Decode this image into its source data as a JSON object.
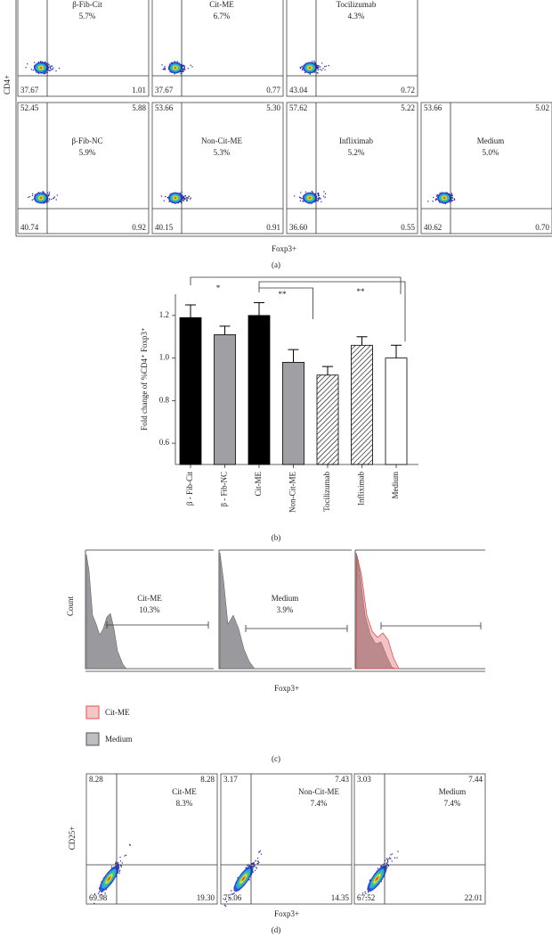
{
  "panel_a": {
    "y_label": "CD4+",
    "x_label": "Foxp3+",
    "caption": "(a)",
    "top_row": [
      {
        "label": "β-Fib-Cit",
        "percent": "5.7%",
        "lower_left": "37.67",
        "lower_right": "1.01"
      },
      {
        "label": "Cit-ME",
        "percent": "6.7%",
        "lower_left": "37.67",
        "lower_right": "0.77"
      },
      {
        "label": "Tocilizumab",
        "percent": "4.3%",
        "lower_left": "43.04",
        "lower_right": "0.72"
      }
    ],
    "bottom_row": [
      {
        "label": "β-Fib-NC",
        "percent": "5.9%",
        "upper_left": "52.45",
        "upper_right": "5.88",
        "lower_left": "40.74",
        "lower_right": "0.92"
      },
      {
        "label": "Non-Cit-ME",
        "percent": "5.3%",
        "upper_left": "53.66",
        "upper_right": "5.30",
        "lower_left": "40.15",
        "lower_right": "0.91"
      },
      {
        "label": "Infliximab",
        "percent": "5.2%",
        "upper_left": "57.62",
        "upper_right": "5.22",
        "lower_left": "36.60",
        "lower_right": "0.55"
      },
      {
        "label": "Medium",
        "percent": "5.0%",
        "upper_left": "53.66",
        "upper_right": "5.02",
        "lower_left": "40.62",
        "lower_right": "0.70"
      }
    ]
  },
  "chart_data": {
    "type": "bar",
    "y_label": "Fold change of %CD4⁺ Foxp3⁺",
    "caption": "(b)",
    "categories": [
      "β - Fib-Cit",
      "β - Fib-NC",
      "Cit-ME",
      "Non-Cit-ME",
      "Tocilizumab",
      "Infliximab",
      "Medium"
    ],
    "values": [
      1.19,
      1.11,
      1.2,
      0.98,
      0.92,
      1.06,
      1.0
    ],
    "errors": [
      0.06,
      0.04,
      0.06,
      0.06,
      0.04,
      0.04,
      0.06
    ],
    "colors": [
      "#000000",
      "#a0a0a4",
      "#000000",
      "#a0a0a4",
      "#ffffff",
      "#ffffff",
      "#ffffff"
    ],
    "hatch": [
      false,
      false,
      false,
      false,
      true,
      true,
      false
    ],
    "ylim": [
      0.5,
      1.3
    ],
    "yticks": [
      0.6,
      0.8,
      {
        "value": 1,
        "label": "1.0"
      },
      1.2
    ],
    "annotations": [
      "*",
      "**",
      "**"
    ]
  },
  "panel_c": {
    "y_label": "Count",
    "x_label": "Foxp3+",
    "caption": "(c)",
    "plots": [
      {
        "label": "Cit-ME",
        "percent": "10.3%"
      },
      {
        "label": "Medium",
        "percent": "3.9%"
      }
    ],
    "legend": [
      "Cit-ME",
      "Medium"
    ]
  },
  "panel_d": {
    "y_label": "CD25+",
    "x_label": "Foxp3+",
    "caption": "(d)",
    "plots": [
      {
        "label": "Cit-ME",
        "percent": "8.3%",
        "upper_left": "8.28",
        "upper_right": "8.28",
        "lower_left": "69.98",
        "lower_right": "19.30"
      },
      {
        "label": "Non-Cit-ME",
        "percent": "7.4%",
        "upper_left": "3.17",
        "upper_right": "7.43",
        "lower_left": "75.06",
        "lower_right": "14.35"
      },
      {
        "label": "Medium",
        "percent": "7.4%",
        "upper_left": "3.03",
        "upper_right": "7.44",
        "lower_left": "67.52",
        "lower_right": "22.01"
      }
    ]
  }
}
